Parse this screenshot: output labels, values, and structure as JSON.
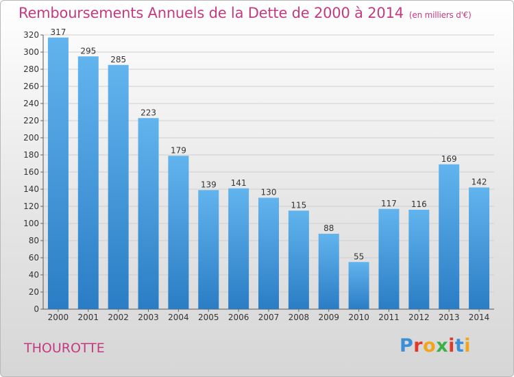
{
  "title": {
    "main": "Remboursements Annuels de la Dette de 2000 à 2014",
    "unit": "(en milliers d'€)"
  },
  "city": "THOUROTTE",
  "logo": {
    "text": "Proxiti",
    "letter_colors": [
      "#3a8fd6",
      "#e0392b",
      "#f0a51c",
      "#3cb14a",
      "#e0392b",
      "#3a8fd6",
      "#f0a51c"
    ]
  },
  "chart_data": {
    "type": "bar",
    "categories": [
      "2000",
      "2001",
      "2002",
      "2003",
      "2004",
      "2005",
      "2006",
      "2007",
      "2008",
      "2009",
      "2010",
      "2011",
      "2012",
      "2013",
      "2014"
    ],
    "values": [
      317,
      295,
      285,
      223,
      179,
      139,
      141,
      130,
      115,
      88,
      55,
      117,
      116,
      169,
      142
    ],
    "title": "Remboursements Annuels de la Dette de 2000 à 2014",
    "xlabel": "",
    "ylabel": "",
    "ylim": [
      0,
      320
    ],
    "yticks": [
      0,
      20,
      40,
      60,
      80,
      100,
      120,
      140,
      160,
      180,
      200,
      220,
      240,
      260,
      280,
      300,
      320
    ],
    "grid": true,
    "legend": "none",
    "colors": {
      "bar_top": "#62b4ee",
      "bar_bottom": "#2a7dc4",
      "grid": "#cfcfcf",
      "axis_text": "#333333"
    }
  }
}
